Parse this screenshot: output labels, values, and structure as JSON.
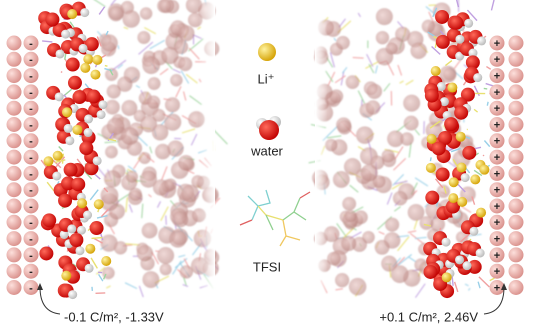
{
  "legend": {
    "li": "Li⁺",
    "water": "water",
    "tfsi": "TFSI"
  },
  "left_electrode": {
    "sign": "-",
    "caption": "-0.1 C/m², -1.33V"
  },
  "right_electrode": {
    "sign": "+",
    "caption": "+0.1 C/m², 2.46V"
  }
}
